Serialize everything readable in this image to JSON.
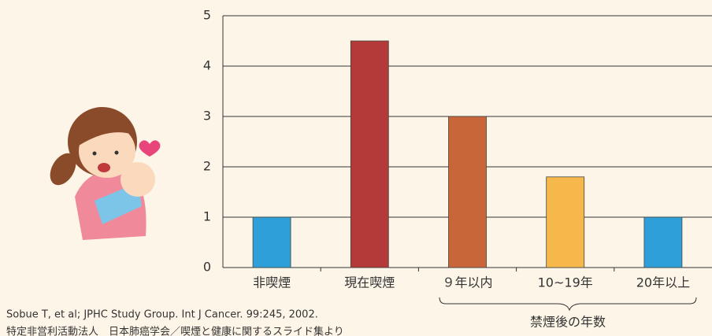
{
  "chart_data": {
    "type": "bar",
    "categories": [
      "非喫煙",
      "現在喫煙",
      "９年以内",
      "10~19年",
      "20年以上"
    ],
    "values": [
      1,
      4.5,
      3.0,
      1.8,
      1
    ],
    "colors": [
      "#2e9fd8",
      "#b43a39",
      "#c8663a",
      "#f6b84b",
      "#2e9fd8"
    ],
    "ylim": [
      0,
      5
    ],
    "yticks": [
      0,
      1,
      2,
      3,
      4,
      5
    ],
    "grid": true,
    "group_label": "禁煙後の年数",
    "source_lines": [
      "Sobue T, et al; JPHC Study Group. Int J Cancer. 99:245, 2002.",
      "特定非営利活動法人　日本肺癌学会／喫煙と健康に関するスライド集より"
    ]
  }
}
